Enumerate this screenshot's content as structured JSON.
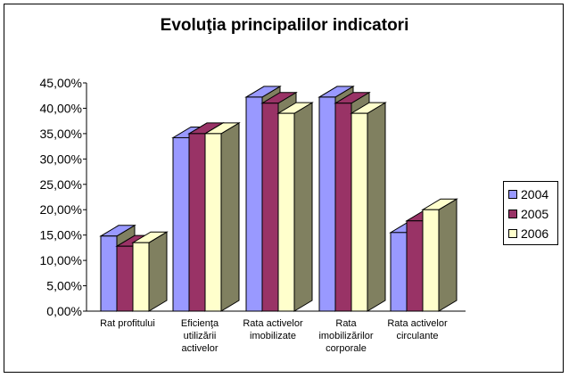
{
  "chart_data": {
    "type": "bar",
    "title": "Evoluţia principalilor indicatori",
    "categories": [
      [
        "Rat profitului"
      ],
      [
        "Eficienţa",
        "utilizării",
        "activelor"
      ],
      [
        "Rata activelor",
        "imobilizate"
      ],
      [
        "Rata",
        "imobilizărilor",
        "corporale"
      ],
      [
        "Rata activelor",
        "circulante"
      ]
    ],
    "series": [
      {
        "name": "2004",
        "color": "#9999ff",
        "values": [
          14.8,
          34.2,
          42.2,
          42.2,
          15.5
        ]
      },
      {
        "name": "2005",
        "color": "#993366",
        "values": [
          12.8,
          35.0,
          41.0,
          41.0,
          17.8
        ]
      },
      {
        "name": "2006",
        "color": "#ffffcc",
        "values": [
          13.5,
          35.0,
          39.0,
          39.0,
          20.0
        ]
      }
    ],
    "y_ticks": [
      "0,00%",
      "5,00%",
      "10,00%",
      "15,00%",
      "20,00%",
      "25,00%",
      "30,00%",
      "35,00%",
      "40,00%",
      "45,00%"
    ],
    "ylim": [
      0,
      45
    ],
    "grid": false,
    "legend_position": "right",
    "style": "3d-clustered-column",
    "side_face_color": "#808060"
  }
}
